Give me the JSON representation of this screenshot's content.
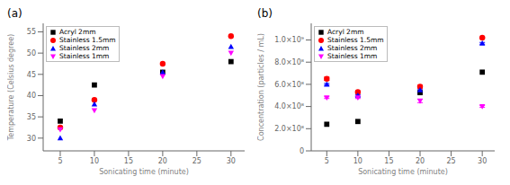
{
  "chart_data": [
    {
      "type": "scatter",
      "title": "(a)",
      "x_label": "Sonicating time (minute)",
      "y_label": "Temperature (Celsius degree)",
      "x": [
        5,
        10,
        20,
        30
      ],
      "xlim": [
        2.5,
        32
      ],
      "xticks": [
        5,
        10,
        15,
        20,
        25,
        30
      ],
      "ylim": [
        27,
        57
      ],
      "yticks": [
        30,
        35,
        40,
        45,
        50,
        55
      ],
      "grid": false,
      "legend": "upper left",
      "series": [
        {
          "name": "Acryl 2mm",
          "color": "black",
          "marker": "square",
          "values": [
            34,
            42.5,
            45.5,
            48
          ]
        },
        {
          "name": "Stainless 1.5mm",
          "color": "red",
          "marker": "circle",
          "values": [
            32.5,
            39,
            47.5,
            54
          ]
        },
        {
          "name": "Stainless 2mm",
          "color": "blue",
          "marker": "triangle",
          "values": [
            30,
            38,
            45.5,
            51.5
          ]
        },
        {
          "name": "Stainless 1mm",
          "color": "magenta",
          "marker": "triangle-down",
          "values": [
            32,
            36.5,
            44.5,
            50
          ]
        }
      ]
    },
    {
      "type": "scatter",
      "title": "(b)",
      "x_label": "Sonicating time (minute)",
      "y_label": "Concentration (particles / mL)",
      "x": [
        5,
        10,
        20,
        30
      ],
      "xlim": [
        2.5,
        32
      ],
      "xticks": [
        5,
        10,
        15,
        20,
        25,
        30
      ],
      "ylim": [
        0,
        1150000000
      ],
      "yticks": [
        0,
        {
          "value": 200000000,
          "label": "2.0×10⁸"
        },
        {
          "value": 400000000,
          "label": "4.0×10⁸"
        },
        {
          "value": 600000000,
          "label": "6.0×10⁸"
        },
        {
          "value": 800000000,
          "label": "8.0×10⁸"
        },
        {
          "value": 1000000000,
          "label": "1.0×10⁹"
        }
      ],
      "grid": false,
      "legend": "upper left",
      "series": [
        {
          "name": "Acryl 2mm",
          "color": "black",
          "marker": "square",
          "values": [
            240000000,
            265000000,
            525000000,
            710000000
          ],
          "errors": [
            0,
            0,
            5000000,
            0
          ]
        },
        {
          "name": "Stainless 1.5mm",
          "color": "red",
          "marker": "circle",
          "values": [
            650000000,
            530000000,
            580000000,
            1020000000
          ],
          "errors": [
            15000000,
            10000000,
            12000000,
            5000000
          ]
        },
        {
          "name": "Stainless 2mm",
          "color": "blue",
          "marker": "triangle",
          "values": [
            600000000,
            500000000,
            550000000,
            970000000
          ],
          "errors": [
            8000000,
            8000000,
            8000000,
            8000000
          ]
        },
        {
          "name": "Stainless 1mm",
          "color": "magenta",
          "marker": "triangle-down",
          "values": [
            480000000,
            480000000,
            450000000,
            400000000
          ],
          "errors": [
            8000000,
            8000000,
            15000000,
            8000000
          ]
        }
      ]
    }
  ]
}
